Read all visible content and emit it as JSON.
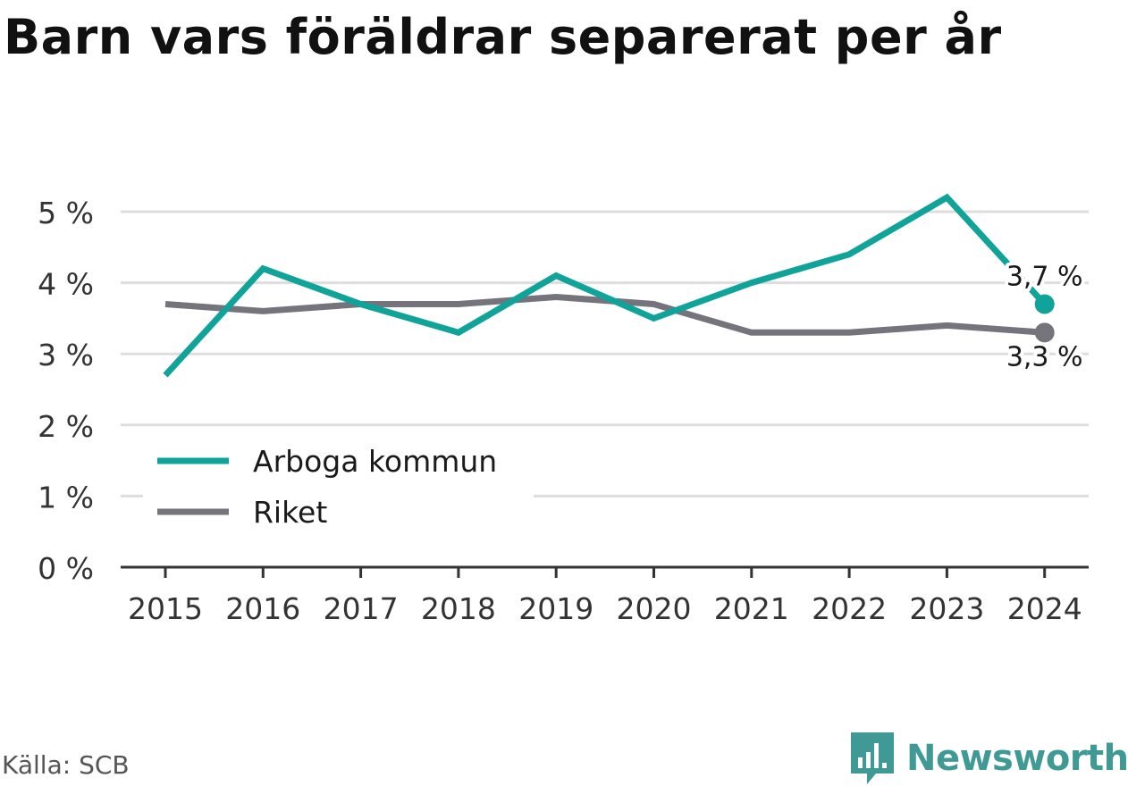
{
  "title": "Barn vars föräldrar separerat per år",
  "source": "Källa: SCB",
  "brand": {
    "name": "Newsworthy",
    "icon": "newsworthy-logo-icon",
    "color": "#3f9a96"
  },
  "chart_data": {
    "type": "line",
    "title": "Barn vars föräldrar separerat per år",
    "x": [
      "2015",
      "2016",
      "2017",
      "2018",
      "2019",
      "2020",
      "2021",
      "2022",
      "2023",
      "2024"
    ],
    "ylim": [
      0,
      5
    ],
    "yticks": [
      0,
      1,
      2,
      3,
      4,
      5
    ],
    "ytick_labels": [
      "0 %",
      "1 %",
      "2 %",
      "3 %",
      "4 %",
      "5 %"
    ],
    "grid": true,
    "legend_position": "bottom-left",
    "series": [
      {
        "name": "Arboga kommun",
        "color": "#0fa39a",
        "values": [
          2.7,
          4.2,
          3.7,
          3.3,
          4.1,
          3.5,
          4.0,
          4.4,
          5.2,
          3.7
        ],
        "end_label": "3,7 %"
      },
      {
        "name": "Riket",
        "color": "#75747c",
        "values": [
          3.7,
          3.6,
          3.7,
          3.7,
          3.8,
          3.7,
          3.3,
          3.3,
          3.4,
          3.3
        ],
        "end_label": "3,3 %"
      }
    ]
  }
}
